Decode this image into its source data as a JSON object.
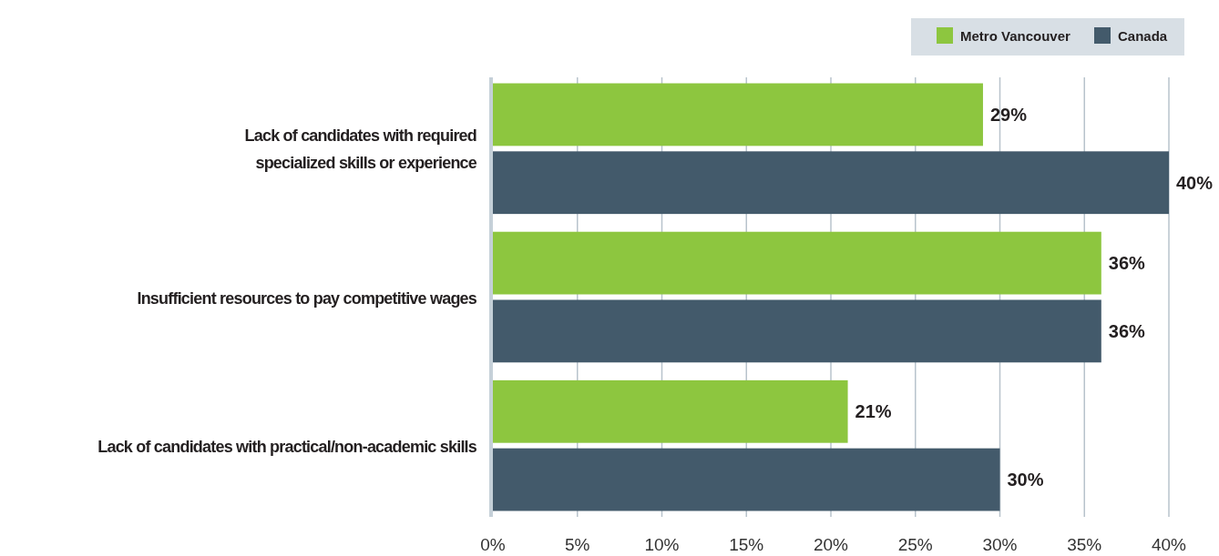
{
  "chart_data": {
    "type": "bar",
    "orientation": "horizontal",
    "categories": [
      "Lack of candidates with required specialized skills or experience",
      "Insufficient resources to pay competitive wages",
      "Lack of candidates with practical/non-academic skills"
    ],
    "series": [
      {
        "name": "Metro Vancouver",
        "color": "#8dc63f",
        "values": [
          29,
          36,
          21
        ],
        "value_labels": [
          "29%",
          "36%",
          "21%"
        ]
      },
      {
        "name": "Canada",
        "color": "#435a6b",
        "values": [
          40,
          36,
          30
        ],
        "value_labels": [
          "40%",
          "36%",
          "30%"
        ]
      }
    ],
    "xlim": [
      0,
      40
    ],
    "xticks": [
      {
        "value": 0,
        "label": "0%"
      },
      {
        "value": 5,
        "label": "5%"
      },
      {
        "value": 10,
        "label": "10%"
      },
      {
        "value": 15,
        "label": "15%"
      },
      {
        "value": 20,
        "label": "20%"
      },
      {
        "value": 25,
        "label": "25%"
      },
      {
        "value": 30,
        "label": "30%"
      },
      {
        "value": 35,
        "label": "35%"
      },
      {
        "value": 40,
        "label": "40%"
      }
    ],
    "grid": "x",
    "legend": "top right"
  }
}
